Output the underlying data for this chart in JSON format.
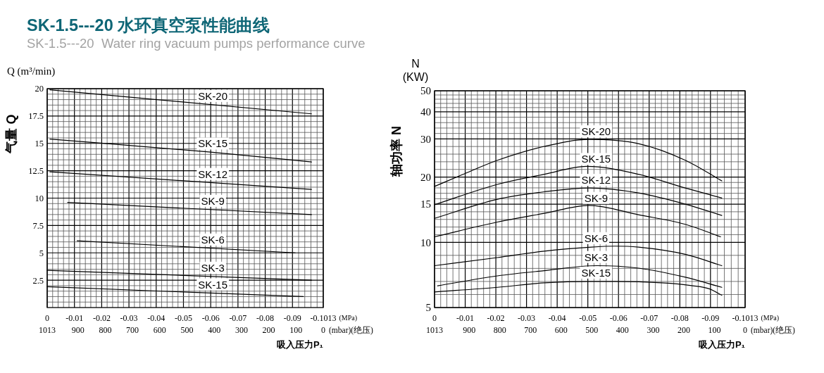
{
  "chart_data": [
    {
      "type": "line",
      "title": "SK-1.5---20 水环真空泵性能曲线",
      "subtitle": "SK-1.5---20  Water ring vacuum pumps performance curve",
      "xlabel": "吸入压力P₁",
      "ylabel": "气量 Q",
      "x2label": "(mbar)(绝压)",
      "annotations": [
        "Q (m³/min)",
        "(MPa)"
      ],
      "xlim": [
        0,
        -0.1013
      ],
      "xticks": [
        0,
        -0.01,
        -0.02,
        -0.03,
        -0.04,
        -0.05,
        -0.06,
        -0.07,
        -0.08,
        -0.09,
        -0.1013
      ],
      "x2lim": [
        1013,
        0
      ],
      "x2ticks": [
        1013,
        900,
        800,
        700,
        600,
        500,
        400,
        300,
        200,
        100,
        0
      ],
      "ylim": [
        0,
        20
      ],
      "yticks": [
        2.5,
        5,
        7.5,
        10,
        12.5,
        15,
        17.5,
        20
      ],
      "grid": true,
      "line_style": "solid",
      "series": [
        {
          "name": "SK-20",
          "color": "#000000",
          "x": [
            -0.001,
            -0.097
          ],
          "values": [
            19.9,
            17.7
          ]
        },
        {
          "name": "SK-15",
          "color": "#000000",
          "x": [
            -0.001,
            -0.06,
            -0.097
          ],
          "values": [
            15.4,
            14.2,
            13.3
          ]
        },
        {
          "name": "SK-12",
          "color": "#000000",
          "x": [
            -0.001,
            -0.097
          ],
          "values": [
            12.4,
            10.8
          ]
        },
        {
          "name": "SK-9",
          "color": "#000000",
          "x": [
            -0.0075,
            -0.097
          ],
          "values": [
            9.6,
            8.5
          ]
        },
        {
          "name": "SK-6",
          "color": "#000000",
          "x": [
            -0.011,
            -0.091
          ],
          "values": [
            6.1,
            5.0
          ]
        },
        {
          "name": "SK-3",
          "color": "#000000",
          "x": [
            0,
            -0.097
          ],
          "values": [
            3.4,
            2.5
          ]
        },
        {
          "name": "SK-15",
          "color": "#000000",
          "x": [
            0,
            -0.094
          ],
          "values": [
            1.9,
            1.0
          ]
        }
      ]
    },
    {
      "type": "line",
      "xlabel": "吸入压力P₁",
      "ylabel": "轴功率 N",
      "x2label": "(mbar)(绝压)",
      "annotations": [
        "N (KW)",
        "(MPa)"
      ],
      "xlim": [
        0,
        -0.1013
      ],
      "xticks": [
        0,
        -0.01,
        -0.02,
        -0.03,
        -0.04,
        -0.05,
        -0.06,
        -0.07,
        -0.08,
        -0.09,
        -0.1013
      ],
      "x2lim": [
        1013,
        0
      ],
      "x2ticks": [
        1013,
        900,
        800,
        700,
        600,
        500,
        400,
        300,
        200,
        100,
        0
      ],
      "ylim": [
        5,
        50
      ],
      "yticks": [
        5,
        10,
        15,
        20,
        30,
        40,
        50
      ],
      "log": true,
      "grid": true,
      "line_style": "solid",
      "series": [
        {
          "name": "SK-20",
          "color": "#000000",
          "x": [
            0,
            -0.009,
            -0.0205,
            -0.0358,
            -0.0504,
            -0.0665,
            -0.0818,
            -0.0937
          ],
          "values": [
            18.1,
            20.5,
            23.9,
            27.7,
            29.8,
            28.5,
            23.9,
            19.2
          ]
        },
        {
          "name": "SK-15",
          "color": "#000000",
          "x": [
            0,
            -0.0205,
            -0.0358,
            -0.0496,
            -0.0665,
            -0.0818,
            -0.0937
          ],
          "values": [
            14.9,
            18.5,
            20.6,
            22.4,
            20.6,
            17.8,
            16.0
          ]
        },
        {
          "name": "SK-12",
          "color": "#000000",
          "x": [
            0,
            -0.0205,
            -0.0358,
            -0.0504,
            -0.0665,
            -0.0818,
            -0.0937
          ],
          "values": [
            12.9,
            15.8,
            17.1,
            17.8,
            16.9,
            15.0,
            13.3
          ]
        },
        {
          "name": "SK-9",
          "color": "#000000",
          "x": [
            0,
            -0.0205,
            -0.0358,
            -0.0504,
            -0.0665,
            -0.0818,
            -0.0933
          ],
          "values": [
            10.6,
            12.4,
            13.6,
            14.8,
            13.4,
            12.1,
            10.6
          ]
        },
        {
          "name": "SK-6",
          "color": "#000000",
          "x": [
            0,
            -0.0205,
            -0.0358,
            -0.0512,
            -0.0588,
            -0.0665,
            -0.0818,
            -0.0937
          ],
          "values": [
            7.8,
            8.5,
            9.1,
            9.5,
            9.6,
            9.5,
            8.8,
            7.8
          ]
        },
        {
          "name": "SK-3",
          "color": "#000000",
          "x": [
            -0.001,
            -0.0205,
            -0.0358,
            -0.053,
            -0.0665,
            -0.0818,
            -0.0937
          ],
          "values": [
            6.3,
            7.0,
            7.4,
            7.8,
            7.6,
            6.9,
            6.2
          ]
        },
        {
          "name": "SK-15",
          "color": "#000000",
          "x": [
            0,
            -0.0205,
            -0.0358,
            -0.0512,
            -0.0588,
            -0.0742,
            -0.0843,
            -0.0896,
            -0.0937
          ],
          "values": [
            5.9,
            6.2,
            6.5,
            6.6,
            6.6,
            6.5,
            6.3,
            6.1,
            5.7
          ]
        }
      ]
    }
  ]
}
